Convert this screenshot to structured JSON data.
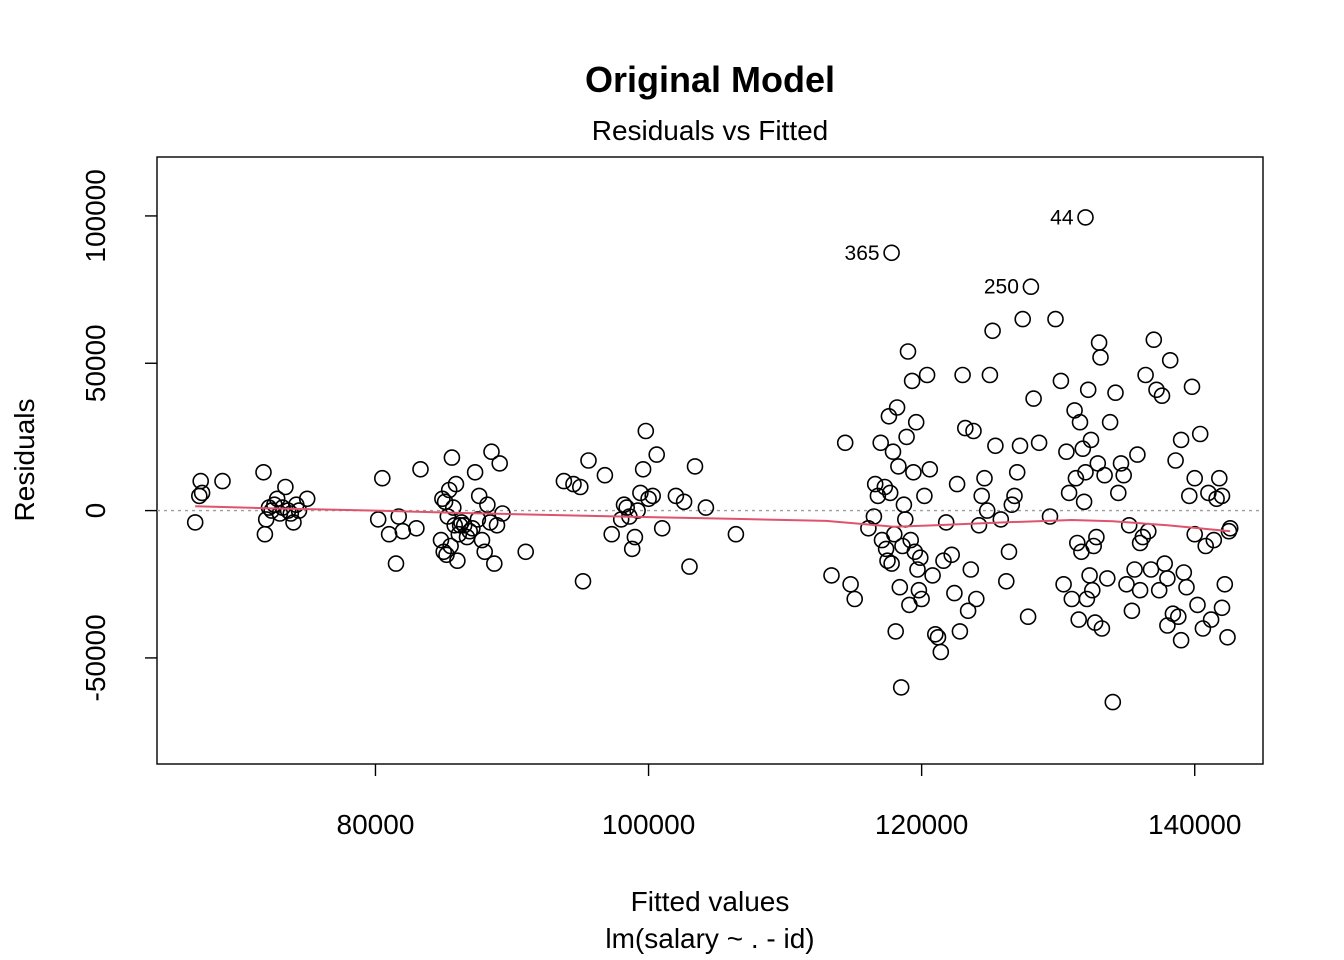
{
  "chart_data": {
    "type": "scatter",
    "title": "Original Model",
    "subtitle": "Residuals vs Fitted",
    "xlabel": "Fitted values",
    "xlabel2": "lm(salary ~ . - id)",
    "ylabel": "Residuals",
    "xlim": [
      64000,
      145000
    ],
    "ylim": [
      -86000,
      120000
    ],
    "x_ticks": [
      80000,
      100000,
      120000,
      140000
    ],
    "x_tick_labels": [
      "80000",
      "100000",
      "120000",
      "140000"
    ],
    "y_ticks": [
      -50000,
      0,
      50000,
      100000
    ],
    "y_tick_labels": [
      "-50000",
      "0",
      "50000",
      "100000"
    ],
    "reference_line": {
      "y": 0,
      "style": "dotted",
      "color": "#9e9e9e"
    },
    "smooth_color": "#df536b",
    "smooth": {
      "x": [
        66800,
        72000,
        80000,
        86000,
        90000,
        100000,
        106000,
        113000,
        118000,
        121000,
        126000,
        131000,
        134000,
        138000,
        142600
      ],
      "y": [
        1500,
        800,
        0,
        -800,
        -1200,
        -2200,
        -2800,
        -3500,
        -5500,
        -5000,
        -4000,
        -3200,
        -3600,
        -5000,
        -7000
      ]
    },
    "labeled_points": [
      {
        "x": 132000,
        "y": 99500,
        "label": "44"
      },
      {
        "x": 117800,
        "y": 87500,
        "label": "365"
      },
      {
        "x": 128000,
        "y": 76000,
        "label": "250"
      }
    ],
    "points": [
      [
        66800,
        -4000
      ],
      [
        67100,
        5000
      ],
      [
        67200,
        10000
      ],
      [
        67300,
        6000
      ],
      [
        68800,
        10000
      ],
      [
        71800,
        13000
      ],
      [
        71900,
        -8000
      ],
      [
        72000,
        -3000
      ],
      [
        72200,
        1000
      ],
      [
        72400,
        0
      ],
      [
        72600,
        2000
      ],
      [
        72800,
        4000
      ],
      [
        73000,
        -1000
      ],
      [
        73200,
        1000
      ],
      [
        73400,
        8000
      ],
      [
        73600,
        0
      ],
      [
        73800,
        -1000
      ],
      [
        74000,
        -4000
      ],
      [
        74200,
        2000
      ],
      [
        74400,
        0
      ],
      [
        75000,
        4000
      ],
      [
        80200,
        -3000
      ],
      [
        80500,
        11000
      ],
      [
        81000,
        -8000
      ],
      [
        81500,
        -18000
      ],
      [
        81700,
        -2000
      ],
      [
        82000,
        -7000
      ],
      [
        83000,
        -6000
      ],
      [
        83300,
        14000
      ],
      [
        84800,
        -10000
      ],
      [
        84900,
        4000
      ],
      [
        85000,
        -14000
      ],
      [
        85100,
        3000
      ],
      [
        85200,
        -15000
      ],
      [
        85300,
        -2000
      ],
      [
        85400,
        7000
      ],
      [
        85500,
        -12000
      ],
      [
        85600,
        18000
      ],
      [
        85700,
        1000
      ],
      [
        85800,
        -5000
      ],
      [
        85900,
        9000
      ],
      [
        86000,
        -17000
      ],
      [
        86100,
        -8000
      ],
      [
        86200,
        -5000
      ],
      [
        86300,
        -4000
      ],
      [
        86500,
        -5000
      ],
      [
        86700,
        -9000
      ],
      [
        86900,
        -7000
      ],
      [
        87100,
        -6000
      ],
      [
        87300,
        13000
      ],
      [
        87500,
        -3000
      ],
      [
        87600,
        5000
      ],
      [
        87800,
        -10000
      ],
      [
        88000,
        -14000
      ],
      [
        88200,
        2000
      ],
      [
        88400,
        -4000
      ],
      [
        88500,
        20000
      ],
      [
        88700,
        -18000
      ],
      [
        88900,
        -5000
      ],
      [
        89100,
        16000
      ],
      [
        89300,
        -1000
      ],
      [
        91000,
        -14000
      ],
      [
        93800,
        10000
      ],
      [
        94500,
        9000
      ],
      [
        95000,
        8000
      ],
      [
        95200,
        -24000
      ],
      [
        95600,
        17000
      ],
      [
        96800,
        12000
      ],
      [
        97300,
        -8000
      ],
      [
        98000,
        -3000
      ],
      [
        98200,
        2000
      ],
      [
        98400,
        1000
      ],
      [
        98600,
        -2000
      ],
      [
        98800,
        -13000
      ],
      [
        99000,
        -9000
      ],
      [
        99200,
        0
      ],
      [
        99400,
        6000
      ],
      [
        99600,
        14000
      ],
      [
        99800,
        27000
      ],
      [
        100000,
        4000
      ],
      [
        100300,
        5000
      ],
      [
        100600,
        19000
      ],
      [
        101000,
        -6000
      ],
      [
        102000,
        5000
      ],
      [
        102600,
        3000
      ],
      [
        103000,
        -19000
      ],
      [
        103400,
        15000
      ],
      [
        104200,
        1000
      ],
      [
        106400,
        -8000
      ],
      [
        113400,
        -22000
      ],
      [
        114400,
        23000
      ],
      [
        114800,
        -25000
      ],
      [
        115100,
        -30000
      ],
      [
        116100,
        -6000
      ],
      [
        116500,
        -2000
      ],
      [
        116600,
        9000
      ],
      [
        116800,
        5000
      ],
      [
        117000,
        23000
      ],
      [
        117100,
        -10000
      ],
      [
        117300,
        8000
      ],
      [
        117400,
        -13000
      ],
      [
        117500,
        -17000
      ],
      [
        117600,
        32000
      ],
      [
        117700,
        6000
      ],
      [
        117800,
        -18000
      ],
      [
        117900,
        20000
      ],
      [
        118000,
        -8000
      ],
      [
        118100,
        -41000
      ],
      [
        118200,
        35000
      ],
      [
        118300,
        15000
      ],
      [
        118400,
        -26000
      ],
      [
        118500,
        -60000
      ],
      [
        118600,
        -12000
      ],
      [
        118700,
        2000
      ],
      [
        118800,
        -3000
      ],
      [
        118900,
        25000
      ],
      [
        119000,
        54000
      ],
      [
        119100,
        -32000
      ],
      [
        119200,
        -10000
      ],
      [
        119300,
        44000
      ],
      [
        119400,
        13000
      ],
      [
        119500,
        -14000
      ],
      [
        119600,
        30000
      ],
      [
        119700,
        -20000
      ],
      [
        119800,
        -27000
      ],
      [
        119900,
        -16000
      ],
      [
        120000,
        -30000
      ],
      [
        120200,
        5000
      ],
      [
        120400,
        46000
      ],
      [
        120600,
        14000
      ],
      [
        120800,
        -22000
      ],
      [
        121000,
        -42000
      ],
      [
        121200,
        -43000
      ],
      [
        121400,
        -48000
      ],
      [
        121600,
        -17000
      ],
      [
        121800,
        -4000
      ],
      [
        122200,
        -15000
      ],
      [
        122400,
        -28000
      ],
      [
        122600,
        9000
      ],
      [
        122800,
        -41000
      ],
      [
        123000,
        46000
      ],
      [
        123200,
        28000
      ],
      [
        123400,
        -34000
      ],
      [
        123600,
        -20000
      ],
      [
        123800,
        27000
      ],
      [
        124000,
        -30000
      ],
      [
        124200,
        -5000
      ],
      [
        124400,
        5000
      ],
      [
        124600,
        11000
      ],
      [
        124800,
        0
      ],
      [
        125000,
        46000
      ],
      [
        125200,
        61000
      ],
      [
        125400,
        22000
      ],
      [
        125800,
        -3000
      ],
      [
        126200,
        -24000
      ],
      [
        126400,
        -14000
      ],
      [
        126600,
        2000
      ],
      [
        126800,
        5000
      ],
      [
        127000,
        13000
      ],
      [
        127200,
        22000
      ],
      [
        127400,
        65000
      ],
      [
        127800,
        -36000
      ],
      [
        128200,
        38000
      ],
      [
        128600,
        23000
      ],
      [
        129400,
        -2000
      ],
      [
        129800,
        65000
      ],
      [
        130200,
        44000
      ],
      [
        130400,
        -25000
      ],
      [
        130600,
        20000
      ],
      [
        130800,
        6000
      ],
      [
        131000,
        -30000
      ],
      [
        131200,
        34000
      ],
      [
        131300,
        11000
      ],
      [
        131400,
        -11000
      ],
      [
        131500,
        -37000
      ],
      [
        131600,
        30000
      ],
      [
        131700,
        -14000
      ],
      [
        131800,
        21000
      ],
      [
        131900,
        3000
      ],
      [
        132000,
        13000
      ],
      [
        132100,
        -30000
      ],
      [
        132200,
        41000
      ],
      [
        132300,
        -22000
      ],
      [
        132400,
        24000
      ],
      [
        132500,
        -27000
      ],
      [
        132600,
        -12000
      ],
      [
        132700,
        -38000
      ],
      [
        132800,
        -9000
      ],
      [
        132900,
        16000
      ],
      [
        133000,
        57000
      ],
      [
        133100,
        52000
      ],
      [
        133200,
        -40000
      ],
      [
        133400,
        12000
      ],
      [
        133600,
        -23000
      ],
      [
        133800,
        30000
      ],
      [
        134000,
        -65000
      ],
      [
        134200,
        40000
      ],
      [
        134400,
        6000
      ],
      [
        134600,
        16000
      ],
      [
        134800,
        12000
      ],
      [
        135000,
        -25000
      ],
      [
        135200,
        -5000
      ],
      [
        135400,
        -34000
      ],
      [
        135600,
        -20000
      ],
      [
        135800,
        19000
      ],
      [
        136000,
        -27000
      ],
      [
        136200,
        -9000
      ],
      [
        136400,
        46000
      ],
      [
        136600,
        -7000
      ],
      [
        136800,
        -20000
      ],
      [
        137000,
        58000
      ],
      [
        137200,
        41000
      ],
      [
        137400,
        -27000
      ],
      [
        137600,
        39000
      ],
      [
        137800,
        -18000
      ],
      [
        138000,
        -23000
      ],
      [
        138200,
        51000
      ],
      [
        138400,
        -35000
      ],
      [
        138600,
        17000
      ],
      [
        138800,
        -36000
      ],
      [
        139000,
        24000
      ],
      [
        139200,
        -21000
      ],
      [
        139400,
        -26000
      ],
      [
        139600,
        5000
      ],
      [
        139800,
        42000
      ],
      [
        140000,
        11000
      ],
      [
        140200,
        -32000
      ],
      [
        140400,
        26000
      ],
      [
        140600,
        -40000
      ],
      [
        140800,
        -12000
      ],
      [
        141000,
        6000
      ],
      [
        141200,
        -37000
      ],
      [
        141400,
        -10000
      ],
      [
        141600,
        4000
      ],
      [
        141800,
        11000
      ],
      [
        142000,
        -33000
      ],
      [
        142200,
        -25000
      ],
      [
        142400,
        -43000
      ],
      [
        142500,
        -7000
      ],
      [
        142600,
        -6000
      ],
      [
        136000,
        -11000
      ],
      [
        138000,
        -39000
      ],
      [
        139000,
        -44000
      ],
      [
        142000,
        5000
      ],
      [
        140000,
        -8000
      ]
    ]
  }
}
